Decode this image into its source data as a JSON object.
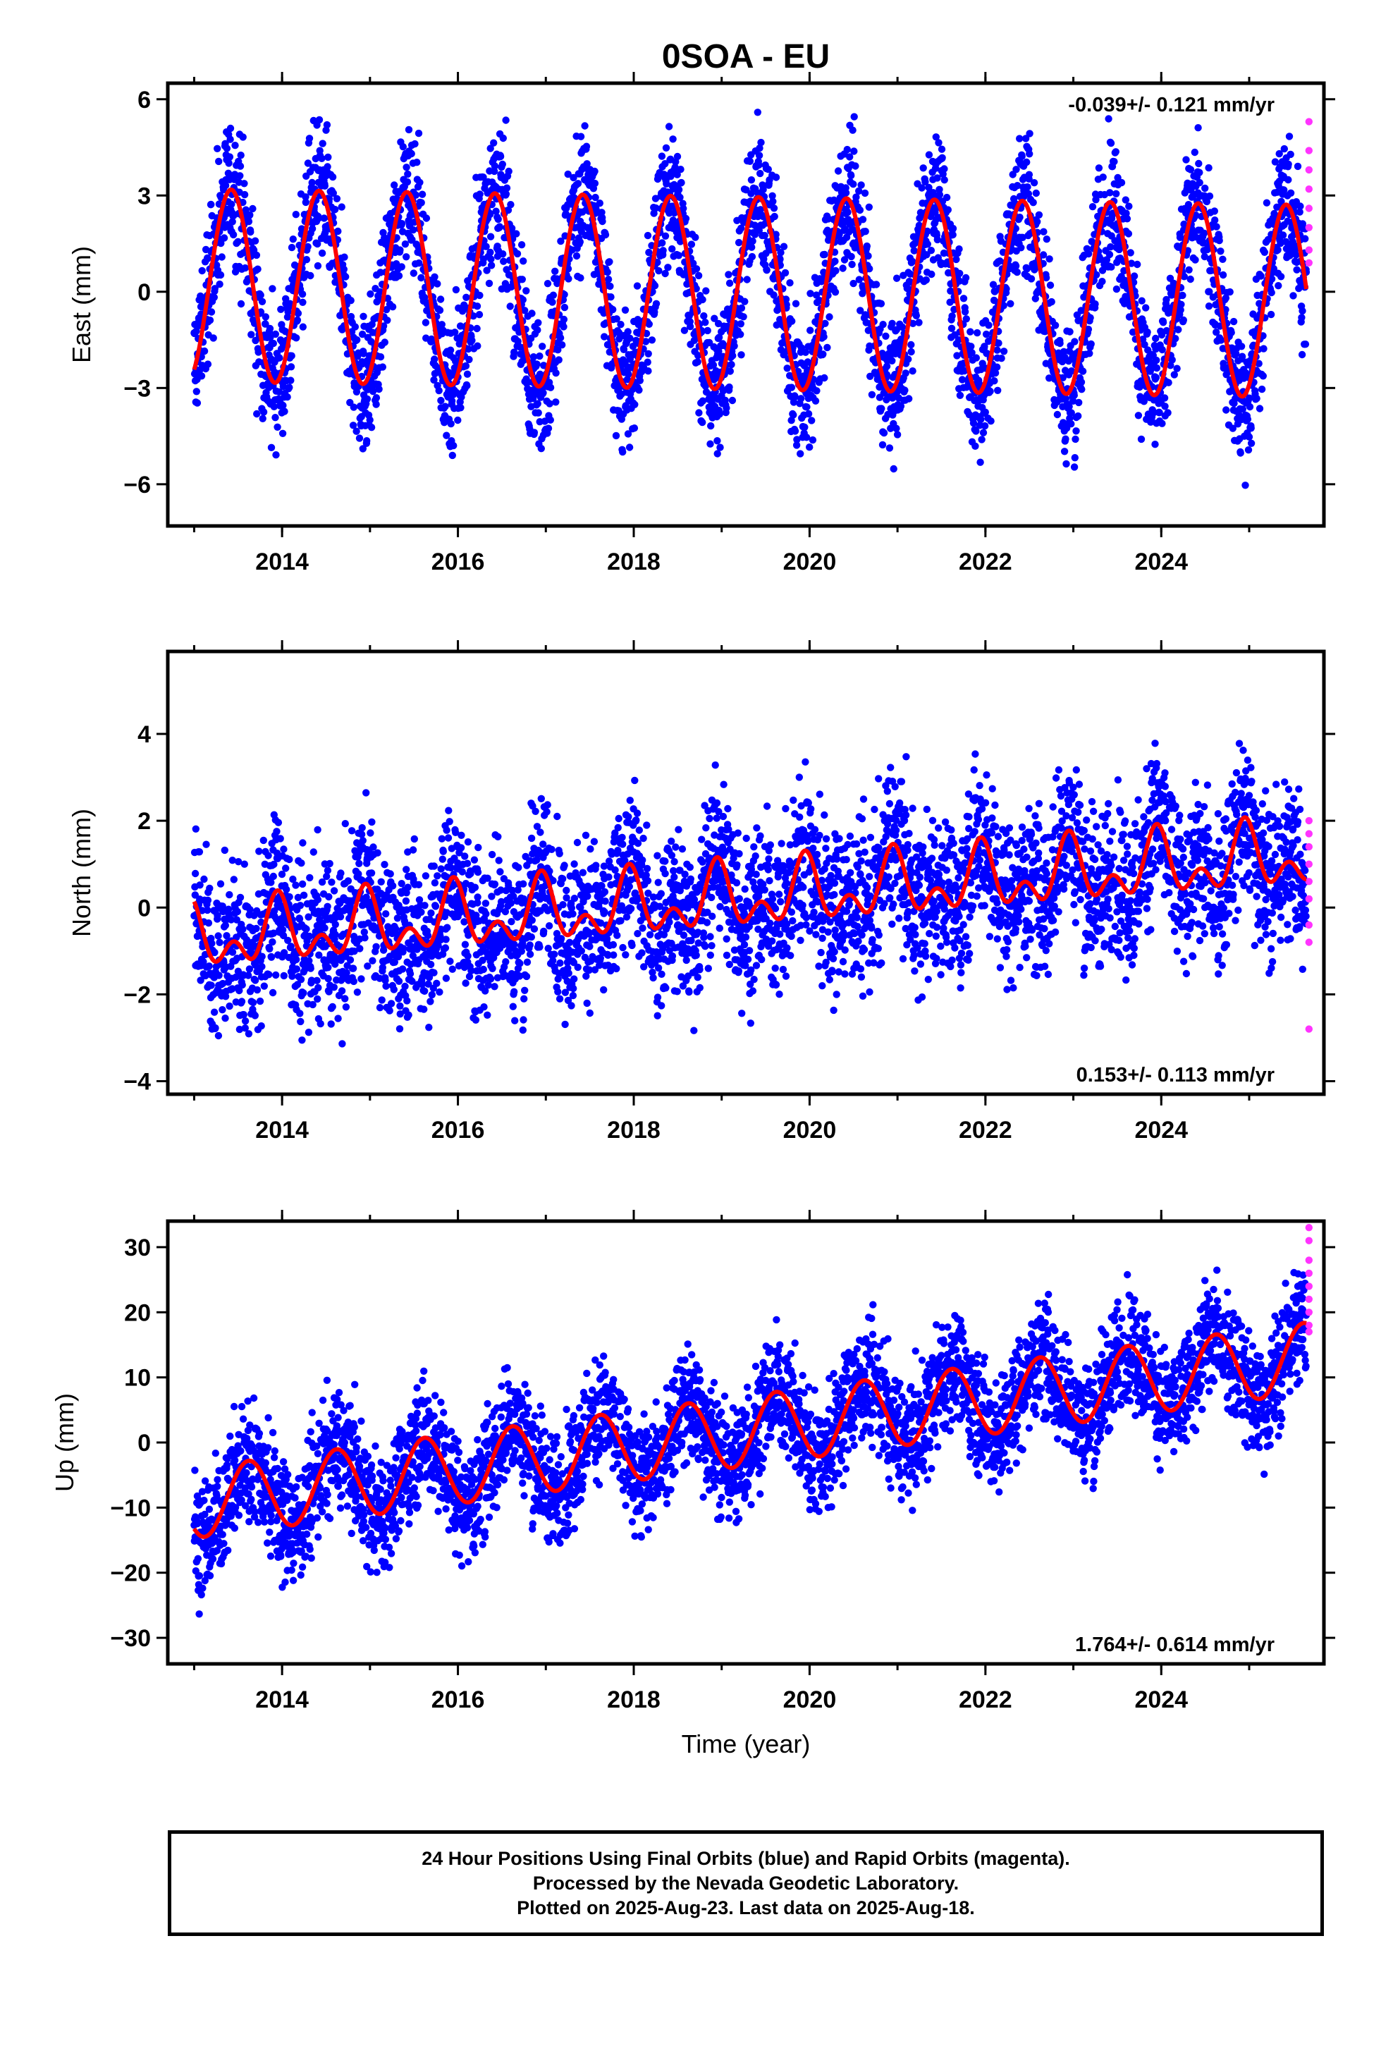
{
  "title": "0SOA - EU",
  "xlabel": "Time (year)",
  "caption": [
    "24 Hour Positions Using Final Orbits (blue) and Rapid Orbits (magenta).",
    "Processed by the Nevada Geodetic Laboratory.",
    "Plotted on 2025-Aug-23. Last data on 2025-Aug-18."
  ],
  "colors": {
    "final_orbits": "#0000ff",
    "rapid_orbits": "#ff33ff",
    "model_fit": "#ff0000",
    "frame": "#000000"
  },
  "chart_data": [
    {
      "type": "scatter",
      "component": "East",
      "ylabel": "East (mm)",
      "rate_label": "-0.039+/- 0.121 mm/yr",
      "rate_label_position": "top-right",
      "xlim": [
        2012.7,
        2025.85
      ],
      "ylim": [
        -7.3,
        6.5
      ],
      "xticks": [
        2014,
        2016,
        2018,
        2020,
        2022,
        2024
      ],
      "yticks": [
        -6,
        -3,
        0,
        3,
        6
      ],
      "model": {
        "start": 2013.0,
        "end": 2025.65,
        "offset": 0.2,
        "rate": -0.039,
        "amplitude": 3.0,
        "peak_phase": 0.42,
        "semiannual": 0
      },
      "scatter_sigma": 1.1,
      "rapid_orbit_values": [
        5.3,
        4.4,
        3.8,
        3.2,
        2.6,
        2.0,
        1.3,
        0.9
      ],
      "grid": false
    },
    {
      "type": "scatter",
      "component": "North",
      "ylabel": "North (mm)",
      "rate_label": "0.153+/- 0.113 mm/yr",
      "rate_label_position": "bottom-right",
      "xlim": [
        2012.7,
        2025.85
      ],
      "ylim": [
        -4.3,
        5.9
      ],
      "xticks": [
        2014,
        2016,
        2018,
        2020,
        2022,
        2024
      ],
      "yticks": [
        -4,
        -2,
        0,
        2,
        4
      ],
      "model": {
        "start": 2013.0,
        "end": 2025.65,
        "offset": -0.75,
        "rate": 0.153,
        "amplitude": 0.55,
        "peak_phase": 0.95,
        "semiannual": 0.45
      },
      "scatter_sigma": 0.95,
      "rapid_orbit_values": [
        2.0,
        1.7,
        1.4,
        1.0,
        0.6,
        0.2,
        -0.4,
        -0.8,
        -2.8
      ],
      "grid": false
    },
    {
      "type": "scatter",
      "component": "Up",
      "ylabel": "Up (mm)",
      "rate_label": "1.764+/- 0.614 mm/yr",
      "rate_label_position": "bottom-right",
      "xlim": [
        2012.7,
        2025.85
      ],
      "ylim": [
        -34,
        34
      ],
      "xticks": [
        2014,
        2016,
        2018,
        2020,
        2022,
        2024
      ],
      "yticks": [
        -30,
        -20,
        -10,
        0,
        10,
        20,
        30
      ],
      "model": {
        "start": 2013.0,
        "end": 2025.65,
        "offset": -9.3,
        "rate": 1.764,
        "amplitude": 5.4,
        "peak_phase": 0.62,
        "semiannual": 0
      },
      "scatter_sigma": 4.6,
      "rapid_orbit_values": [
        33,
        31,
        28,
        26,
        24,
        22,
        20,
        18,
        17
      ],
      "grid": false
    }
  ]
}
